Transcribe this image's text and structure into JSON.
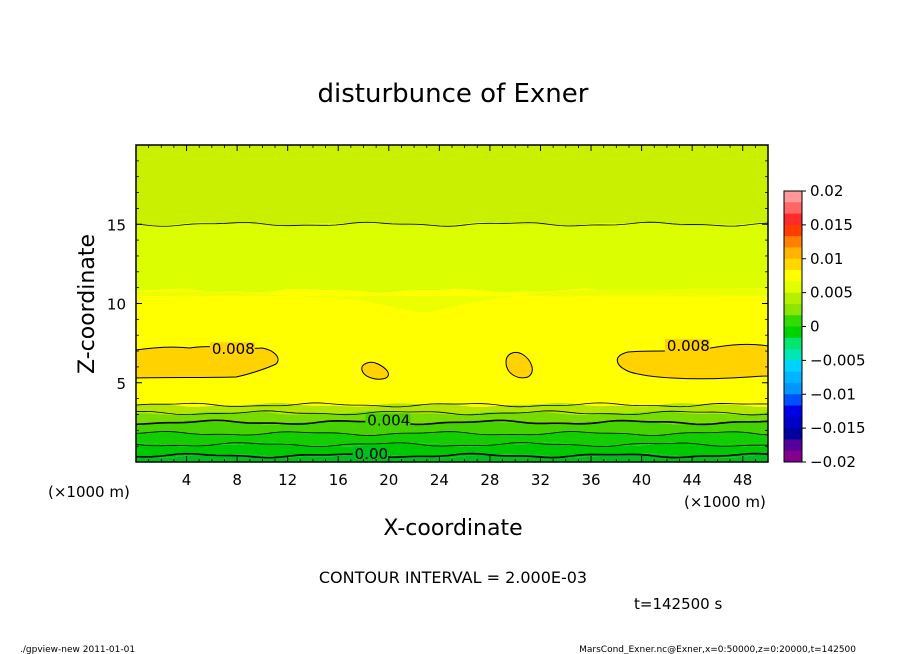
{
  "chart_data": {
    "type": "heatmap",
    "title": "disturbunce of Exner",
    "xlabel": "X-coordinate",
    "ylabel": "Z-coordinate",
    "x_unit": "(×1000 m)",
    "y_unit": "(×1000 m)",
    "xlim": [
      0,
      50
    ],
    "ylim": [
      0,
      20
    ],
    "x_ticks": [
      "4",
      "8",
      "12",
      "16",
      "20",
      "24",
      "28",
      "32",
      "36",
      "40",
      "44",
      "48"
    ],
    "y_ticks": [
      "5",
      "10",
      "15"
    ],
    "contour_interval_text": "CONTOUR INTERVAL = 2.000E-03",
    "time_text": "t=142500 s",
    "contour_labels": [
      {
        "text": "0.008",
        "x": 6,
        "z": 6.8
      },
      {
        "text": "0.008",
        "x": 42,
        "z": 7.0
      },
      {
        "text": "0.004",
        "x": 18.3,
        "z": 2.3
      },
      {
        "text": "0.00",
        "x": 17.3,
        "z": 0.2
      }
    ],
    "colorbar": {
      "labels": [
        "0.02",
        "0.015",
        "0.01",
        "0.005",
        "0",
        "−0.005",
        "−0.01",
        "−0.015",
        "−0.02"
      ],
      "colors": [
        "#ff9999",
        "#ff6666",
        "#ff2a2a",
        "#ff3d00",
        "#ff7f00",
        "#ffb400",
        "#ffd800",
        "#ffff00",
        "#e1ff00",
        "#b4f000",
        "#8ce600",
        "#32dc00",
        "#00d200",
        "#00e66e",
        "#00e6b4",
        "#00d2ff",
        "#00b4ff",
        "#0096ff",
        "#0050ff",
        "#0000e6",
        "#0000c8",
        "#0000a0",
        "#55009b",
        "#82008c"
      ]
    },
    "bands": [
      {
        "z_top": 20.0,
        "z_bot": 15.0,
        "color": "#c8f000"
      },
      {
        "z_top": 15.0,
        "z_bot": 10.8,
        "color": "#dcff00"
      },
      {
        "z_top": 10.8,
        "z_bot": 3.6,
        "color": "#ffff00"
      },
      {
        "z_top": 3.6,
        "z_bot": 3.1,
        "color": "#b4e600"
      },
      {
        "z_top": 3.1,
        "z_bot": 2.5,
        "color": "#78dc00"
      },
      {
        "z_top": 2.5,
        "z_bot": 1.8,
        "color": "#46d200"
      },
      {
        "z_top": 1.8,
        "z_bot": 1.1,
        "color": "#14cd00"
      },
      {
        "z_top": 1.1,
        "z_bot": 0.4,
        "color": "#00c800"
      },
      {
        "z_top": 0.4,
        "z_bot": 0.0,
        "color": "#00be1e"
      }
    ],
    "contour_lines_z": [
      15.0,
      3.6,
      3.1,
      2.5,
      1.8,
      1.1,
      0.4
    ]
  },
  "footer": {
    "left": "./gpview-new   2011-01-01",
    "right": "MarsCond_Exner.nc@Exner,x=0:50000,z=0:20000,t=142500"
  }
}
